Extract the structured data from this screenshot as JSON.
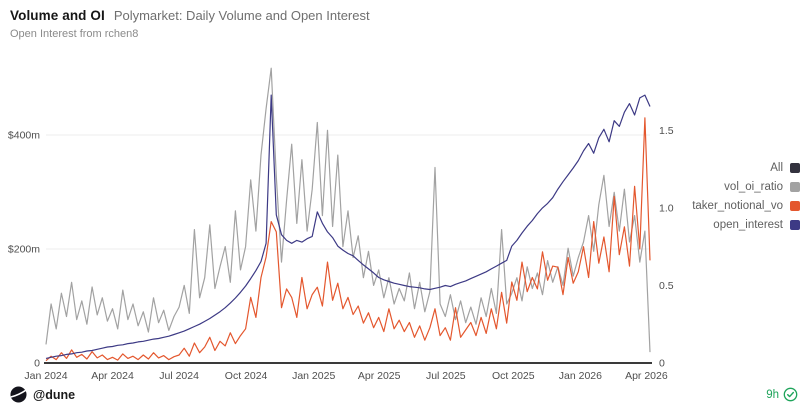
{
  "header": {
    "title": "Volume and OI",
    "subtitle": "Polymarket: Daily Volume and Open Interest",
    "description": "Open Interest from rchen8"
  },
  "legend": {
    "items": [
      {
        "label": "All",
        "color": "#33323e"
      },
      {
        "label": "vol_oi_ratio",
        "color": "#a2a2a2"
      },
      {
        "label": "taker_notional_vo",
        "color": "#e4572e"
      },
      {
        "label": "open_interest",
        "color": "#3d3a85"
      }
    ]
  },
  "footer": {
    "handle": "@dune",
    "refresh_age": "9h",
    "accent_green": "#1fa45b"
  },
  "chart_data": {
    "type": "line",
    "title": "Polymarket: Daily Volume and Open Interest",
    "x_description": "weekly points from Jan 2024 to Apr 2026",
    "grid": "horizontal-faint",
    "legend_position": "right",
    "x_ticks": [
      {
        "label": "Jan 2024",
        "pos": 0
      },
      {
        "label": "Apr 2024",
        "pos": 13
      },
      {
        "label": "Jul 2024",
        "pos": 26
      },
      {
        "label": "Oct 2024",
        "pos": 39.1
      },
      {
        "label": "Jan 2025",
        "pos": 52.3
      },
      {
        "label": "Apr 2025",
        "pos": 65.1
      },
      {
        "label": "Jul 2025",
        "pos": 78.1
      },
      {
        "label": "Oct 2025",
        "pos": 91.3
      },
      {
        "label": "Jan 2026",
        "pos": 104.4
      },
      {
        "label": "Apr 2026",
        "pos": 117.3
      }
    ],
    "axes": {
      "left": {
        "unit": "$m",
        "top_value": 528,
        "ticks": [
          {
            "label": "$400m",
            "value": 400
          },
          {
            "label": "$200m",
            "value": 200
          },
          {
            "label": "0",
            "value": 0
          }
        ]
      },
      "right": {
        "unit": "ratio",
        "top_value": 1.94,
        "ticks": [
          {
            "label": "1.5",
            "value": 1.5
          },
          {
            "label": "1.0",
            "value": 1.0
          },
          {
            "label": "0.5",
            "value": 0.5
          },
          {
            "label": "0",
            "value": 0
          }
        ]
      }
    },
    "series": [
      {
        "name": "vol_oi_ratio",
        "axis": "right",
        "color": "#a2a2a2",
        "values": [
          0.12,
          0.38,
          0.22,
          0.45,
          0.3,
          0.52,
          0.28,
          0.4,
          0.25,
          0.49,
          0.31,
          0.42,
          0.27,
          0.35,
          0.22,
          0.47,
          0.28,
          0.38,
          0.24,
          0.33,
          0.2,
          0.42,
          0.26,
          0.34,
          0.21,
          0.3,
          0.36,
          0.5,
          0.32,
          0.86,
          0.42,
          0.55,
          0.89,
          0.48,
          0.62,
          0.75,
          0.52,
          0.98,
          0.6,
          0.75,
          1.18,
          0.85,
          1.34,
          1.64,
          1.9,
          1.2,
          0.65,
          1.05,
          1.41,
          0.9,
          1.31,
          0.85,
          1.12,
          1.55,
          0.95,
          1.5,
          0.88,
          1.34,
          0.75,
          0.98,
          0.68,
          0.82,
          0.55,
          0.72,
          0.5,
          0.6,
          0.42,
          0.55,
          0.38,
          0.48,
          0.4,
          0.58,
          0.35,
          0.52,
          0.33,
          0.46,
          1.26,
          0.38,
          0.3,
          0.44,
          0.28,
          0.4,
          0.26,
          0.36,
          0.25,
          0.42,
          0.3,
          0.48,
          0.32,
          0.86,
          0.38,
          0.45,
          0.55,
          0.4,
          0.62,
          0.48,
          0.58,
          0.44,
          0.66,
          0.52,
          0.62,
          0.5,
          0.74,
          0.56,
          0.68,
          0.78,
          0.95,
          0.72,
          1.02,
          1.21,
          0.88,
          1.1,
          0.85,
          1.12,
          0.78,
          0.95,
          0.65,
          0.85,
          0.07
        ]
      },
      {
        "name": "taker_notional_vo",
        "axis": "left",
        "color": "#e4572e",
        "values": [
          4,
          12,
          6,
          18,
          8,
          23,
          10,
          15,
          7,
          20,
          9,
          14,
          6,
          10,
          5,
          16,
          8,
          12,
          6,
          14,
          7,
          18,
          9,
          13,
          6,
          11,
          14,
          26,
          12,
          35,
          18,
          28,
          45,
          22,
          38,
          30,
          53,
          34,
          48,
          60,
          115,
          80,
          150,
          186,
          248,
          230,
          97,
          130,
          115,
          80,
          150,
          95,
          120,
          133,
          100,
          177,
          110,
          140,
          95,
          115,
          85,
          100,
          70,
          88,
          62,
          80,
          55,
          95,
          60,
          75,
          55,
          71,
          45,
          65,
          40,
          62,
          95,
          48,
          62,
          40,
          97,
          45,
          58,
          71,
          48,
          80,
          52,
          95,
          60,
          124,
          70,
          142,
          110,
          177,
          125,
          150,
          130,
          195,
          145,
          170,
          168,
          120,
          185,
          140,
          160,
          204,
          150,
          248,
          175,
          221,
          160,
          292,
          190,
          239,
          170,
          310,
          200,
          430,
          180
        ]
      },
      {
        "name": "open_interest",
        "axis": "left",
        "color": "#3d3a85",
        "values": [
          8,
          10,
          12,
          13,
          15,
          16,
          18,
          19,
          21,
          22,
          24,
          26,
          28,
          29,
          31,
          32,
          34,
          35,
          37,
          38,
          40,
          42,
          43,
          45,
          47,
          50,
          53,
          56,
          60,
          64,
          68,
          73,
          78,
          84,
          90,
          97,
          105,
          114,
          124,
          135,
          148,
          162,
          178,
          210,
          470,
          260,
          225,
          215,
          210,
          215,
          212,
          218,
          222,
          265,
          245,
          230,
          220,
          205,
          198,
          192,
          188,
          180,
          172,
          165,
          158,
          150,
          146,
          143,
          140,
          138,
          136,
          134,
          133,
          132,
          130,
          129,
          131,
          133,
          136,
          134,
          138,
          141,
          144,
          148,
          152,
          156,
          160,
          165,
          170,
          175,
          180,
          205,
          215,
          228,
          240,
          250,
          262,
          272,
          280,
          290,
          305,
          318,
          330,
          342,
          355,
          372,
          385,
          368,
          395,
          410,
          388,
          425,
          415,
          440,
          455,
          435,
          465,
          470,
          450
        ]
      }
    ]
  }
}
